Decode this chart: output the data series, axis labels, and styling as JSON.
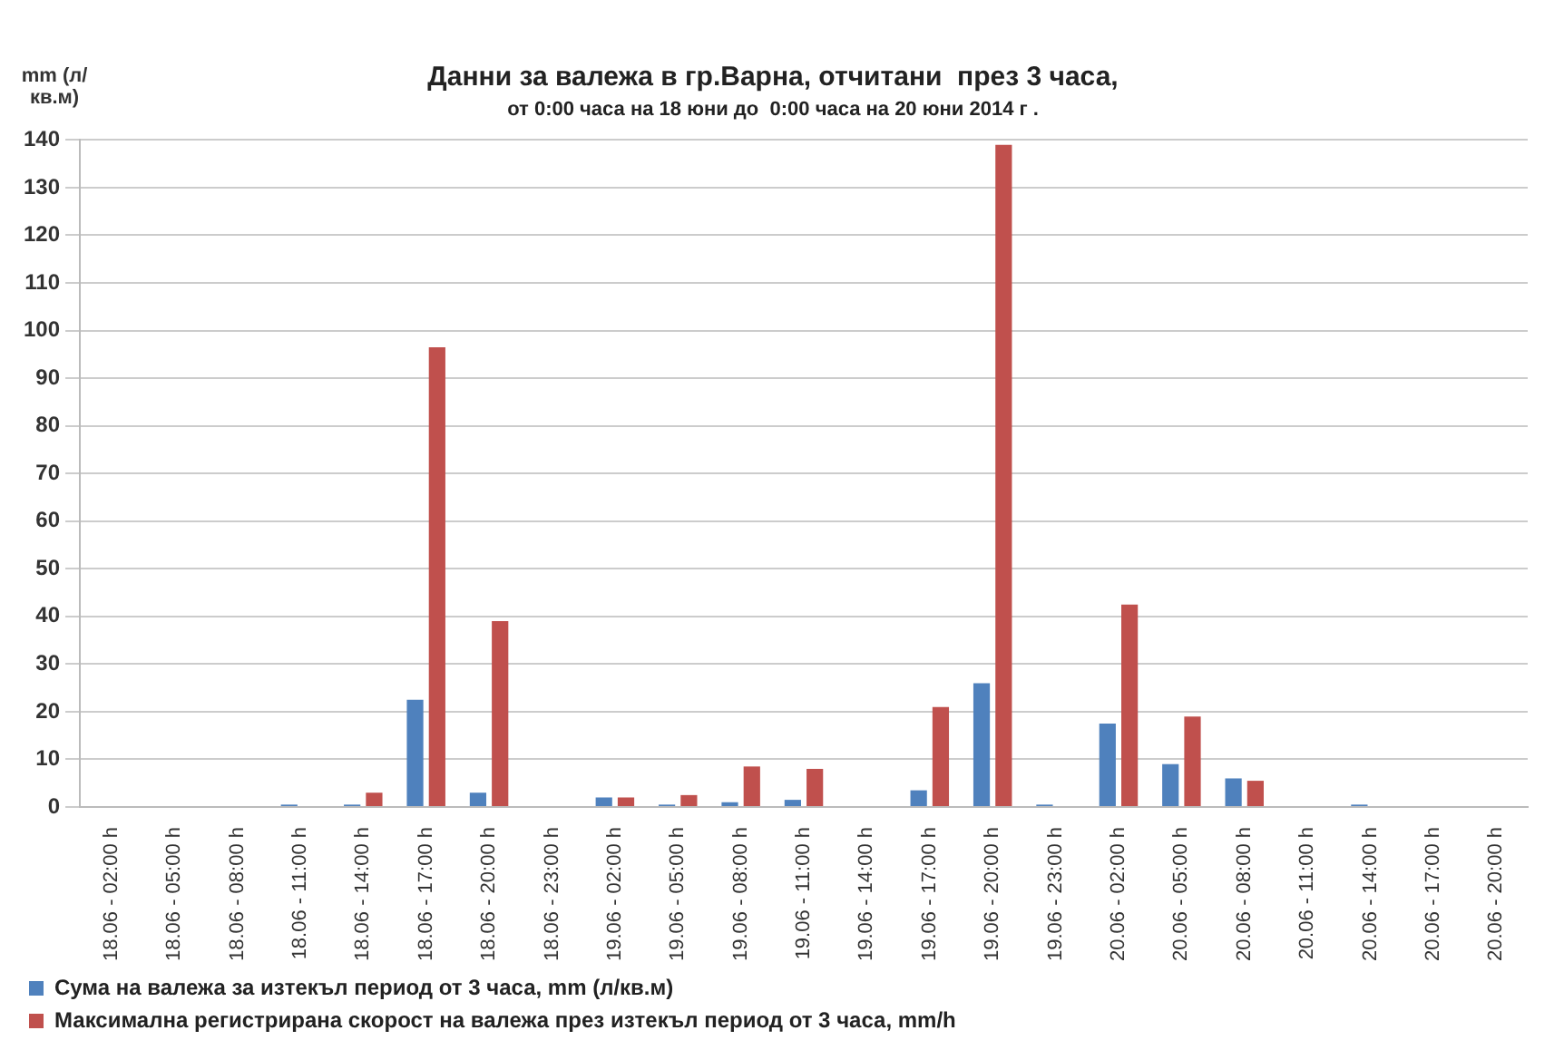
{
  "chart_data": {
    "type": "bar",
    "title": "Данни за валежа в гр.Варна, отчитани  през 3 часа,",
    "subtitle": "от 0:00 часа на 18 юни до  0:00 часа на 20 юни 2014 г .",
    "ylabel": "mm (л/кв.м)",
    "categories": [
      "18.06 - 02:00 h",
      "18.06 - 05:00 h",
      "18.06 - 08:00 h",
      "18.06 - 11:00 h",
      "18.06 - 14:00 h",
      "18.06 - 17:00 h",
      "18.06 - 20:00 h",
      "18.06 - 23:00 h",
      "19.06 - 02:00 h",
      "19.06 - 05:00 h",
      "19.06 - 08:00 h",
      "19.06 - 11:00 h",
      "19.06 - 14:00 h",
      "19.06 - 17:00 h",
      "19.06 - 20:00 h",
      "19.06 - 23:00 h",
      "20.06 - 02:00 h",
      "20.06 - 05:00 h",
      "20.06 - 08:00 h",
      "20.06 - 11:00 h",
      "20.06 - 14:00 h",
      "20.06 - 17:00 h",
      "20.06 - 20:00 h"
    ],
    "series": [
      {
        "name": "Сума на валежа за изтекъл период от 3 часа, mm (л/кв.м)",
        "color": "#4f81bd",
        "values": [
          0,
          0,
          0,
          0.5,
          0.5,
          22.5,
          3,
          0,
          2,
          0.5,
          1,
          1.5,
          0,
          3.5,
          26,
          0.5,
          17.5,
          9,
          6,
          0,
          0.5,
          0,
          0
        ]
      },
      {
        "name": "Максимална регистрирана скорост на валежа през изтекъл период от 3 часа, mm/h",
        "color": "#c0504d",
        "values": [
          0,
          0,
          0,
          0,
          3,
          96.5,
          39,
          0,
          2,
          2.5,
          8.5,
          8,
          0,
          21,
          139,
          0,
          42.5,
          19,
          5.5,
          0,
          0,
          0,
          0
        ]
      }
    ],
    "ylim": [
      0,
      140
    ],
    "yticks": [
      0,
      10,
      20,
      30,
      40,
      50,
      60,
      70,
      80,
      90,
      100,
      110,
      120,
      130,
      140
    ],
    "grid": "y",
    "legend": "bottom"
  }
}
